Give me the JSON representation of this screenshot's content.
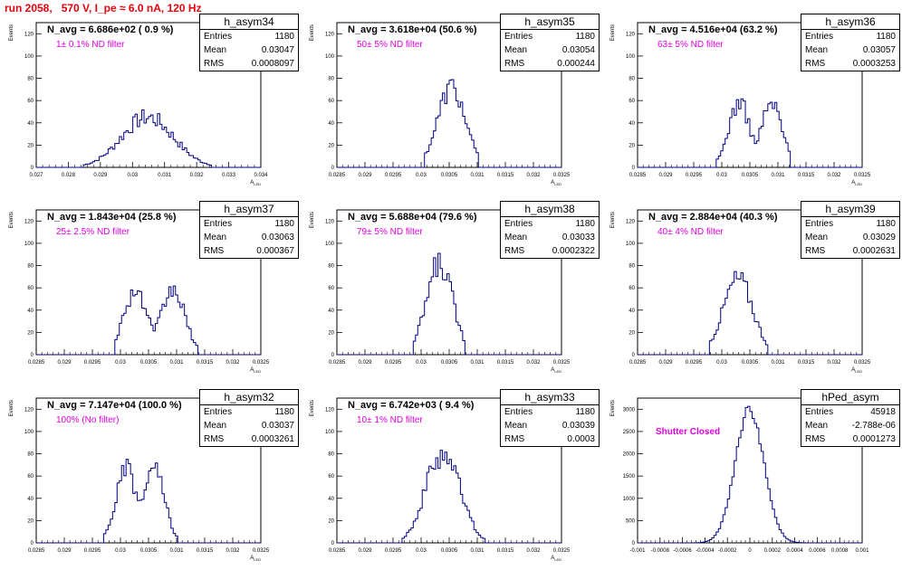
{
  "header": {
    "title": "run 2058,   570 V, I_pe ≈ 6.0 nA, 120 Hz"
  },
  "colors": {
    "title": "#e8000b",
    "histogram": "#000080",
    "filter_label": "#e000e0"
  },
  "common": {
    "ylabel": "Events",
    "xlabel": "A_{LED}"
  },
  "chart_data": [
    {
      "type": "bar",
      "name": "h_asym34",
      "stats": {
        "title": "h_asym34",
        "entries": "1180",
        "mean": "0.03047",
        "rms": "0.0008097"
      },
      "navg": "N_avg = 6.686e+02 ( 0.9 %)",
      "filter": "1± 0.1% ND filter",
      "xlim": [
        0.027,
        0.034
      ],
      "ylim": [
        0,
        130
      ],
      "xticks": [
        "0.027",
        "0.028",
        "0.029",
        "0.03",
        "0.031",
        "0.032",
        "0.033",
        "0.034"
      ],
      "yticks": [
        0,
        20,
        40,
        60,
        80,
        100,
        120
      ],
      "mean": 0.03047,
      "sigma": 0.0008097,
      "peak": 45,
      "jitter": 0.18,
      "secondary": null,
      "tail_pad": 2.5,
      "xlabel": "A_{LED}",
      "ylabel": "Events"
    },
    {
      "type": "bar",
      "name": "h_asym35",
      "stats": {
        "title": "h_asym35",
        "entries": "1180",
        "mean": "0.03054",
        "rms": "0.000244"
      },
      "navg": "N_avg = 3.618e+04 (50.6 %)",
      "filter": "50± 5% ND filter",
      "xlim": [
        0.0285,
        0.0325
      ],
      "ylim": [
        0,
        130
      ],
      "xticks": [
        "0.0285",
        "0.029",
        "0.0295",
        "0.03",
        "0.0305",
        "0.031",
        "0.0315",
        "0.032",
        "0.0325"
      ],
      "yticks": [
        0,
        20,
        40,
        60,
        80,
        100,
        120
      ],
      "mean": 0.03054,
      "sigma": 0.000244,
      "peak": 72,
      "jitter": 0.15,
      "secondary": null,
      "tail_pad": 2.0,
      "xlabel": "A_{LED}",
      "ylabel": "Events"
    },
    {
      "type": "bar",
      "name": "h_asym36",
      "stats": {
        "title": "h_asym36",
        "entries": "1180",
        "mean": "0.03057",
        "rms": "0.0003253"
      },
      "navg": "N_avg = 4.516e+04 (63.2 %)",
      "filter": "63± 5% ND filter",
      "xlim": [
        0.0285,
        0.0325
      ],
      "ylim": [
        0,
        130
      ],
      "xticks": [
        "0.0285",
        "0.029",
        "0.0295",
        "0.03",
        "0.0305",
        "0.031",
        "0.0315",
        "0.032",
        "0.0325"
      ],
      "yticks": [
        0,
        20,
        40,
        60,
        80,
        100,
        120
      ],
      "mean": 0.03057,
      "sigma": 0.0003253,
      "peak": 55,
      "jitter": 0.15,
      "secondary": [
        0.0303,
        0.0309
      ],
      "tail_pad": 2.0,
      "xlabel": "A_{LED}",
      "ylabel": "Events"
    },
    {
      "type": "bar",
      "name": "h_asym37",
      "stats": {
        "title": "h_asym37",
        "entries": "1180",
        "mean": "0.03063",
        "rms": "0.000367"
      },
      "navg": "N_avg = 1.843e+04 (25.8 %)",
      "filter": "25± 2.5% ND filter",
      "xlim": [
        0.0285,
        0.0325
      ],
      "ylim": [
        0,
        130
      ],
      "xticks": [
        "0.0285",
        "0.029",
        "0.0295",
        "0.03",
        "0.0305",
        "0.031",
        "0.0315",
        "0.032",
        "0.0325"
      ],
      "yticks": [
        0,
        20,
        40,
        60,
        80,
        100,
        120
      ],
      "mean": 0.03063,
      "sigma": 0.000367,
      "peak": 55,
      "jitter": 0.15,
      "secondary": [
        0.03025,
        0.03095
      ],
      "tail_pad": 2.0,
      "xlabel": "A_{LED}",
      "ylabel": "Events"
    },
    {
      "type": "bar",
      "name": "h_asym38",
      "stats": {
        "title": "h_asym38",
        "entries": "1180",
        "mean": "0.03033",
        "rms": "0.0002322"
      },
      "navg": "N_avg = 5.688e+04 (79.6 %)",
      "filter": "79± 5% ND filter",
      "xlim": [
        0.0285,
        0.0325
      ],
      "ylim": [
        0,
        130
      ],
      "xticks": [
        "0.0285",
        "0.029",
        "0.0295",
        "0.03",
        "0.0305",
        "0.031",
        "0.0315",
        "0.032",
        "0.0325"
      ],
      "yticks": [
        0,
        20,
        40,
        60,
        80,
        100,
        120
      ],
      "mean": 0.03033,
      "sigma": 0.0002322,
      "peak": 82,
      "jitter": 0.15,
      "secondary": null,
      "tail_pad": 2.0,
      "xlabel": "A_{LED}",
      "ylabel": "Events"
    },
    {
      "type": "bar",
      "name": "h_asym39",
      "stats": {
        "title": "h_asym39",
        "entries": "1180",
        "mean": "0.03029",
        "rms": "0.0002631"
      },
      "navg": "N_avg = 2.884e+04 (40.3 %)",
      "filter": "40± 4% ND filter",
      "xlim": [
        0.0285,
        0.0325
      ],
      "ylim": [
        0,
        130
      ],
      "xticks": [
        "0.0285",
        "0.029",
        "0.0295",
        "0.03",
        "0.0305",
        "0.031",
        "0.0315",
        "0.032",
        "0.0325"
      ],
      "yticks": [
        0,
        20,
        40,
        60,
        80,
        100,
        120
      ],
      "mean": 0.03029,
      "sigma": 0.0002631,
      "peak": 68,
      "jitter": 0.15,
      "secondary": null,
      "tail_pad": 2.0,
      "xlabel": "A_{LED}",
      "ylabel": "Events"
    },
    {
      "type": "bar",
      "name": "h_asym32",
      "stats": {
        "title": "h_asym32",
        "entries": "1180",
        "mean": "0.03037",
        "rms": "0.0003261"
      },
      "navg": "N_avg = 7.147e+04 (100.0 %)",
      "filter": "100% (No filter)",
      "xlim": [
        0.0285,
        0.0325
      ],
      "ylim": [
        0,
        130
      ],
      "xticks": [
        "0.0285",
        "0.029",
        "0.0295",
        "0.03",
        "0.0305",
        "0.031",
        "0.0315",
        "0.032",
        "0.0325"
      ],
      "yticks": [
        0,
        20,
        40,
        60,
        80,
        100,
        120
      ],
      "mean": 0.03037,
      "sigma": 0.0003261,
      "peak": 62,
      "jitter": 0.15,
      "secondary": [
        0.0301,
        0.0306
      ],
      "tail_pad": 2.0,
      "xlabel": "A_{LED}",
      "ylabel": "Events"
    },
    {
      "type": "bar",
      "name": "h_asym33",
      "stats": {
        "title": "h_asym33",
        "entries": "1180",
        "mean": "0.03039",
        "rms": "0.0003"
      },
      "navg": "N_avg = 6.742e+03 ( 9.4 %)",
      "filter": "10± 1% ND filter",
      "xlim": [
        0.0285,
        0.0325
      ],
      "ylim": [
        0,
        130
      ],
      "xticks": [
        "0.0285",
        "0.029",
        "0.0295",
        "0.03",
        "0.0305",
        "0.031",
        "0.0315",
        "0.032",
        "0.0325"
      ],
      "yticks": [
        0,
        20,
        40,
        60,
        80,
        100,
        120
      ],
      "mean": 0.03039,
      "sigma": 0.0003,
      "peak": 82,
      "jitter": 0.18,
      "secondary": null,
      "tail_pad": 2.5,
      "xlabel": "A_{LED}",
      "ylabel": "Events"
    },
    {
      "type": "bar",
      "name": "hPed_asym",
      "stats": {
        "title": "hPed_asym",
        "entries": "45918",
        "mean": "-2.788e-06",
        "rms": "0.0001273"
      },
      "navg": "",
      "filter": "Shutter Closed",
      "xlim": [
        -0.001,
        0.001
      ],
      "ylim": [
        0,
        3250
      ],
      "xticks": [
        "-0.001",
        "-0.0008",
        "-0.0006",
        "-0.0004",
        "-0.0002",
        "0",
        "0.0002",
        "0.0004",
        "0.0006",
        "0.0008",
        "0.001"
      ],
      "yticks": [
        0,
        500,
        1000,
        1500,
        2000,
        2500,
        3000
      ],
      "mean": -2.788e-06,
      "sigma": 0.0001273,
      "peak": 3000,
      "jitter": 0.04,
      "secondary": null,
      "tail_pad": 4.0,
      "xlabel": "",
      "ylabel": "Events"
    }
  ]
}
